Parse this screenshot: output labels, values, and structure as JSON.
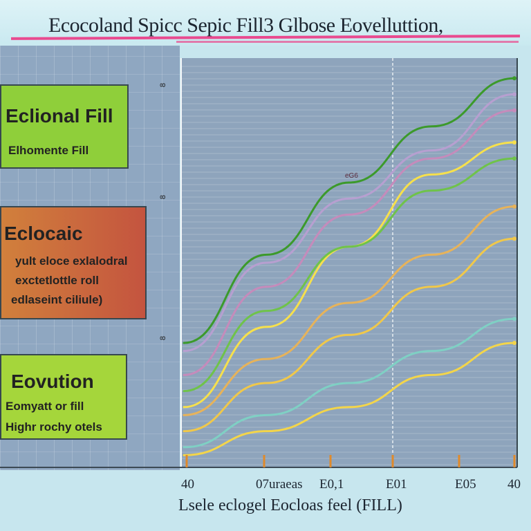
{
  "title": "Ecocoland Spicc Sepic Fill3 Glbose Eovelluttion,",
  "callouts": [
    {
      "heading": "Eclional Fill",
      "lines": [
        "Elhomente Fill"
      ]
    },
    {
      "heading": "Eclocaic",
      "lines": [
        "yult eloce exlalodral",
        "exctetlottle roll",
        "edlaseint ciliule)"
      ]
    },
    {
      "heading": "Eovution",
      "lines": [
        "Eomyatt or fill",
        "Highr rochy otels"
      ]
    }
  ],
  "annotation": "eG6",
  "y_tick_labels": [
    "8",
    "8",
    "8"
  ],
  "chart_data": {
    "type": "line",
    "title": "Ecocoland Spicc Sepic Fill3 Glbose Eovelluttion,",
    "xlabel": "Lsele eclogel Eocloas feel (FILL)",
    "x_tick_labels": [
      "40",
      "07uraeas",
      "E0,1",
      "E01",
      "E05",
      "40"
    ],
    "x": [
      0,
      1,
      2,
      3,
      4
    ],
    "xlim": [
      0,
      4
    ],
    "ylim": [
      0,
      100
    ],
    "grid": true,
    "legend": "none",
    "series": [
      {
        "color": "#f3d54a",
        "values": [
          2,
          8,
          14,
          22,
          30
        ]
      },
      {
        "color": "#f0c84a",
        "values": [
          8,
          20,
          32,
          44,
          56
        ]
      },
      {
        "color": "#f6e04c",
        "values": [
          14,
          34,
          54,
          72,
          80
        ]
      },
      {
        "color": "#c58bbb",
        "values": [
          22,
          44,
          62,
          76,
          88
        ]
      },
      {
        "color": "#b79fd0",
        "values": [
          28,
          50,
          66,
          78,
          92
        ]
      },
      {
        "color": "#3c9a2b",
        "values": [
          30,
          52,
          70,
          84,
          96
        ]
      },
      {
        "color": "#6fc34a",
        "values": [
          18,
          38,
          54,
          68,
          76
        ]
      },
      {
        "color": "#e7b35a",
        "values": [
          12,
          26,
          40,
          52,
          64
        ]
      },
      {
        "color": "#7fd0c4",
        "values": [
          4,
          12,
          20,
          28,
          36
        ]
      }
    ]
  }
}
